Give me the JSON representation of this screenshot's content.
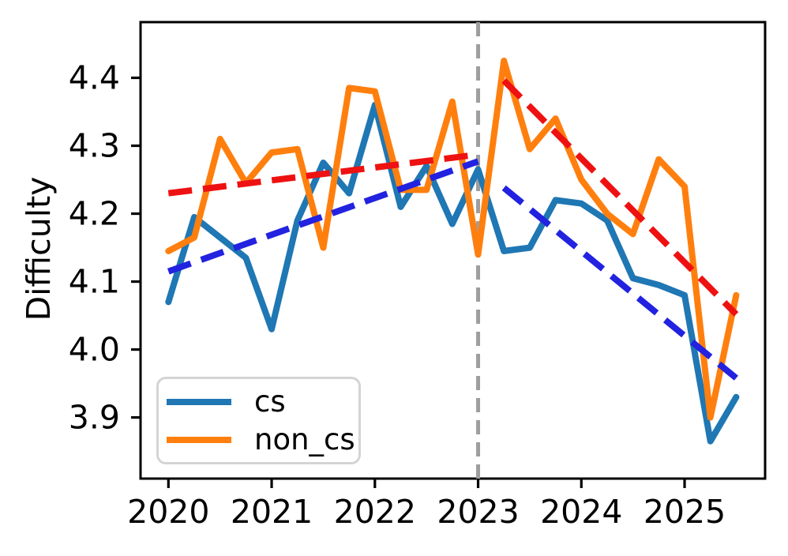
{
  "figure": {
    "background": "#ffffff"
  },
  "axes": {
    "x": {
      "tick_labels": [
        "2020",
        "2021",
        "2022",
        "2023",
        "2024",
        "2025"
      ],
      "tick_values": [
        2020,
        2021,
        2022,
        2023,
        2024,
        2025
      ],
      "lim": [
        2019.73,
        2025.78
      ]
    },
    "y": {
      "label": "Difficulty",
      "tick_labels": [
        "3.9",
        "4.0",
        "4.1",
        "4.2",
        "4.3",
        "4.4"
      ],
      "tick_values": [
        3.9,
        4.0,
        4.1,
        4.2,
        4.3,
        4.4
      ],
      "lim": [
        3.81,
        4.482
      ]
    }
  },
  "legend": {
    "items": [
      {
        "label": "cs",
        "color": "#1f77b4"
      },
      {
        "label": "non_cs",
        "color": "#ff7f0e"
      }
    ]
  },
  "colors": {
    "cs": "#1f77b4",
    "non_cs": "#ff7f0e",
    "cs_trend": "#2222e0",
    "non_cs_trend": "#ee1111",
    "vline": "#9e9e9e",
    "spine": "#000000"
  },
  "chart_data": {
    "type": "line",
    "title": "",
    "xlabel": "",
    "ylabel": "Difficulty",
    "xlim": [
      2019.73,
      2025.78
    ],
    "ylim": [
      3.81,
      4.482
    ],
    "grid": false,
    "legend_position": "lower left",
    "x": [
      2020.0,
      2020.25,
      2020.5,
      2020.75,
      2021.0,
      2021.25,
      2021.5,
      2021.75,
      2022.0,
      2022.25,
      2022.5,
      2022.75,
      2023.0,
      2023.25,
      2023.5,
      2023.75,
      2024.0,
      2024.25,
      2024.5,
      2024.75,
      2025.0,
      2025.25,
      2025.5
    ],
    "series": [
      {
        "name": "cs",
        "color": "#1f77b4",
        "style": "solid",
        "width": 8,
        "values": [
          4.07,
          4.195,
          4.165,
          4.135,
          4.03,
          4.19,
          4.275,
          4.23,
          4.36,
          4.21,
          4.27,
          4.185,
          4.265,
          4.145,
          4.15,
          4.22,
          4.215,
          4.19,
          4.105,
          4.095,
          4.08,
          3.865,
          3.93
        ]
      },
      {
        "name": "non_cs",
        "color": "#ff7f0e",
        "style": "solid",
        "width": 8,
        "values": [
          4.145,
          4.165,
          4.31,
          4.245,
          4.29,
          4.295,
          4.15,
          4.385,
          4.38,
          4.235,
          4.235,
          4.365,
          4.14,
          4.425,
          4.295,
          4.34,
          4.25,
          4.2,
          4.17,
          4.28,
          4.24,
          3.9,
          4.08
        ]
      },
      {
        "name": "cs_trend_pre2023",
        "color": "#2222e0",
        "style": "dashed",
        "width": 8,
        "x": [
          2020.0,
          2023.0
        ],
        "values": [
          4.115,
          4.277
        ]
      },
      {
        "name": "cs_trend_post2023",
        "color": "#2222e0",
        "style": "dashed",
        "width": 8,
        "x": [
          2023.25,
          2025.5
        ],
        "values": [
          4.238,
          3.958
        ]
      },
      {
        "name": "non_cs_trend_pre2023",
        "color": "#ee1111",
        "style": "dashed",
        "width": 8,
        "x": [
          2020.0,
          2023.0
        ],
        "values": [
          4.23,
          4.287
        ]
      },
      {
        "name": "non_cs_trend_post2023",
        "color": "#ee1111",
        "style": "dashed",
        "width": 8,
        "x": [
          2023.25,
          2025.5
        ],
        "values": [
          4.396,
          4.052
        ]
      }
    ],
    "vline": {
      "x": 2023.0,
      "color": "#9e9e9e",
      "style": "dashed",
      "width": 5
    }
  }
}
